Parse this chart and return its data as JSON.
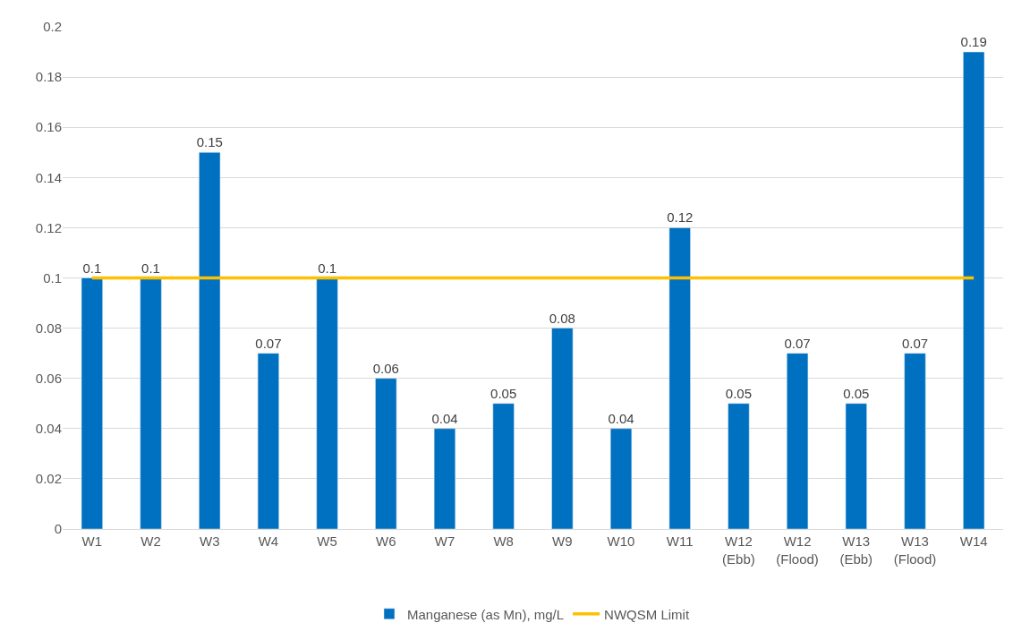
{
  "chart_data": {
    "type": "bar",
    "categories": [
      "W1",
      "W2",
      "W3",
      "W4",
      "W5",
      "W6",
      "W7",
      "W8",
      "W9",
      "W10",
      "W11",
      "W12 (Ebb)",
      "W12 (Flood)",
      "W13 (Ebb)",
      "W13 (Flood)",
      "W14"
    ],
    "series": [
      {
        "name": "Manganese (as Mn), mg/L",
        "color": "#0070c0",
        "values": [
          0.1,
          0.1,
          0.15,
          0.07,
          0.1,
          0.06,
          0.04,
          0.05,
          0.08,
          0.04,
          0.12,
          0.05,
          0.07,
          0.05,
          0.07,
          0.19
        ],
        "value_labels": [
          "0.1",
          "0.1",
          "0.15",
          "0.07",
          "0.1",
          "0.06",
          "0.04",
          "0.05",
          "0.08",
          "0.04",
          "0.12",
          "0.05",
          "0.07",
          "0.05",
          "0.07",
          "0.19"
        ]
      },
      {
        "name": "NWQSM Limit",
        "type": "line",
        "color": "#ffc000",
        "values": [
          0.1,
          0.1,
          0.1,
          0.1,
          0.1,
          0.1,
          0.1,
          0.1,
          0.1,
          0.1,
          0.1,
          0.1,
          0.1,
          0.1,
          0.1,
          0.1
        ]
      }
    ],
    "ylim": [
      0,
      0.2
    ],
    "yticks": [
      0,
      0.02,
      0.04,
      0.06,
      0.08,
      0.1,
      0.12,
      0.14,
      0.16,
      0.18,
      0.2
    ],
    "grid": "y",
    "legend": "bottom",
    "marker": "none"
  }
}
